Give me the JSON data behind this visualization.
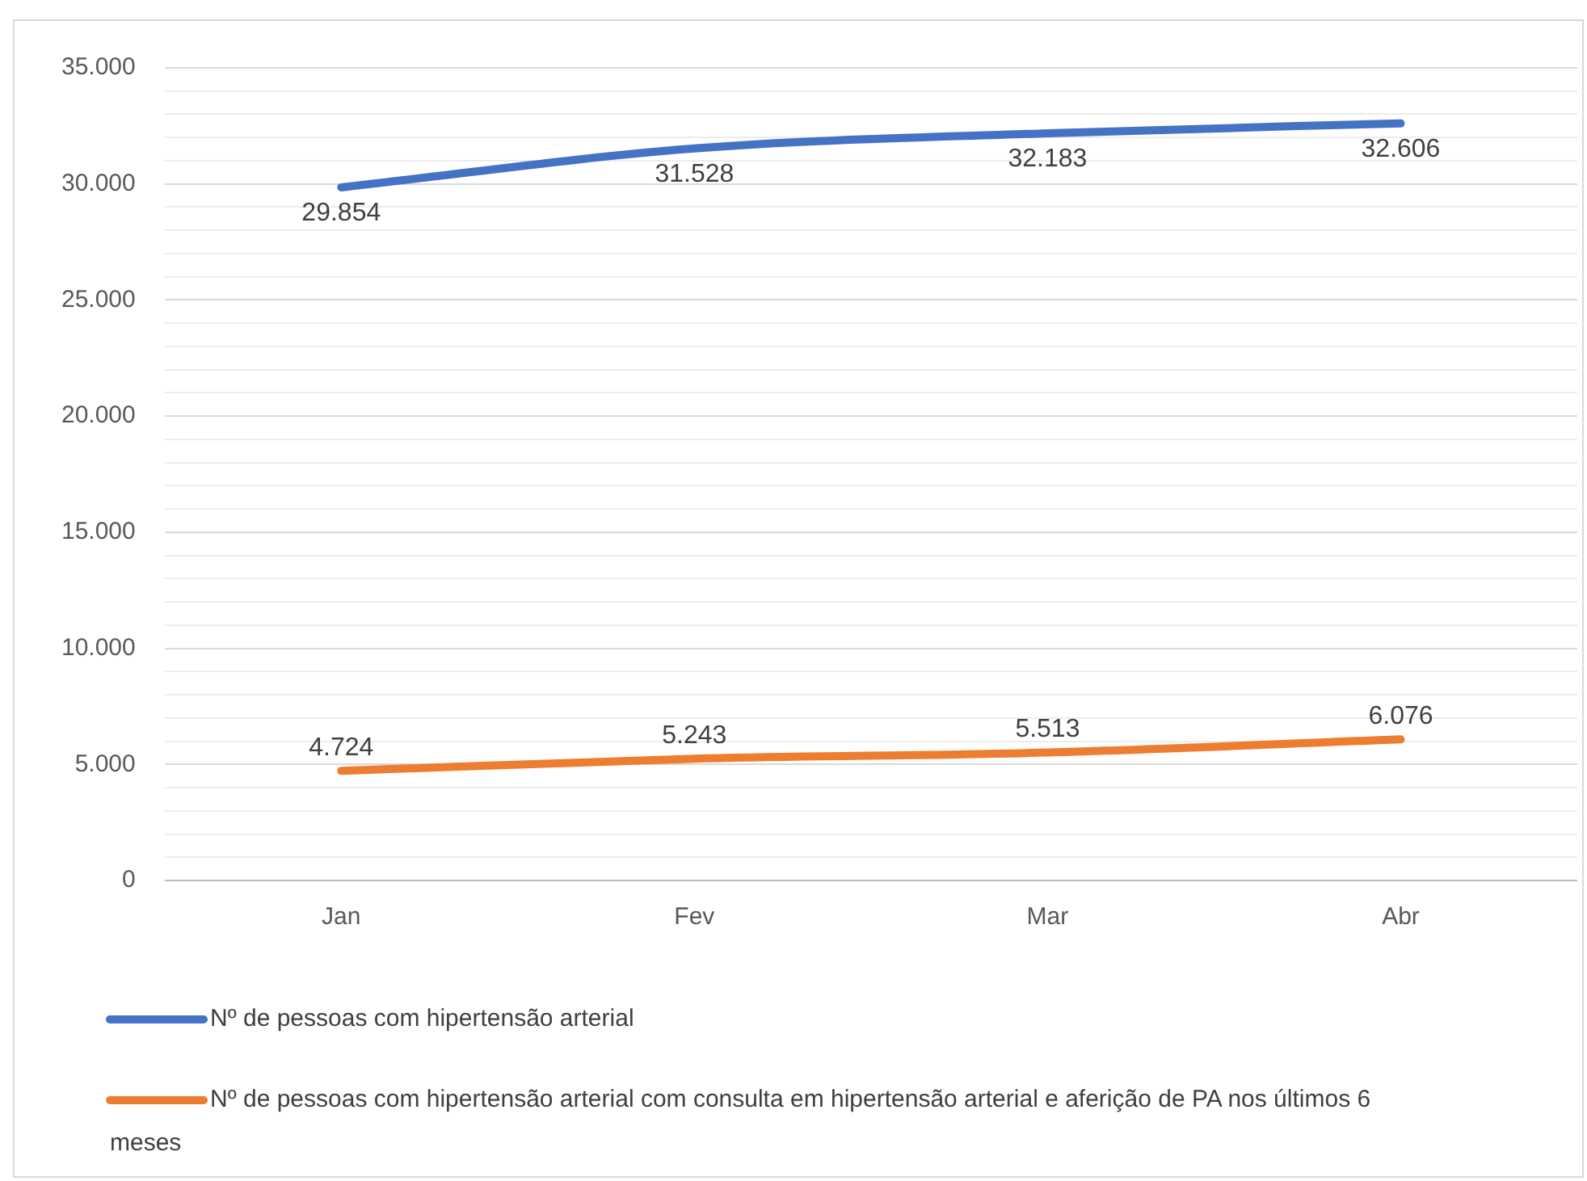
{
  "chart_data": {
    "type": "line",
    "categories": [
      "Jan",
      "Fev",
      "Mar",
      "Abr"
    ],
    "series": [
      {
        "name": "Nº de pessoas com hipertensão arterial",
        "color": "#4472c4",
        "values": [
          29854,
          31528,
          32183,
          32606
        ],
        "value_labels": [
          "29.854",
          "31.528",
          "32.183",
          "32.606"
        ]
      },
      {
        "name": "Nº de pessoas com hipertensão arterial com consulta em hipertensão arterial e aferição de PA nos últimos 6 meses",
        "color": "#ed7d31",
        "values": [
          4724,
          5243,
          5513,
          6076
        ],
        "value_labels": [
          "4.724",
          "5.243",
          "5.513",
          "6.076"
        ]
      }
    ],
    "ylim": [
      0,
      35000
    ],
    "yticks": [
      {
        "value": 0,
        "label": "0"
      },
      {
        "value": 1000,
        "label": null
      },
      {
        "value": 2000,
        "label": null
      },
      {
        "value": 3000,
        "label": null
      },
      {
        "value": 4000,
        "label": null
      },
      {
        "value": 5000,
        "label": "5.000"
      },
      {
        "value": 6000,
        "label": null
      },
      {
        "value": 7000,
        "label": null
      },
      {
        "value": 8000,
        "label": null
      },
      {
        "value": 9000,
        "label": null
      },
      {
        "value": 10000,
        "label": "10.000"
      },
      {
        "value": 11000,
        "label": null
      },
      {
        "value": 12000,
        "label": null
      },
      {
        "value": 13000,
        "label": null
      },
      {
        "value": 14000,
        "label": null
      },
      {
        "value": 15000,
        "label": "15.000"
      },
      {
        "value": 16000,
        "label": null
      },
      {
        "value": 17000,
        "label": null
      },
      {
        "value": 18000,
        "label": null
      },
      {
        "value": 19000,
        "label": null
      },
      {
        "value": 20000,
        "label": "20.000"
      },
      {
        "value": 21000,
        "label": null
      },
      {
        "value": 22000,
        "label": null
      },
      {
        "value": 23000,
        "label": null
      },
      {
        "value": 24000,
        "label": null
      },
      {
        "value": 25000,
        "label": "25.000"
      },
      {
        "value": 26000,
        "label": null
      },
      {
        "value": 27000,
        "label": null
      },
      {
        "value": 28000,
        "label": null
      },
      {
        "value": 29000,
        "label": null
      },
      {
        "value": 30000,
        "label": "30.000"
      },
      {
        "value": 31000,
        "label": null
      },
      {
        "value": 32000,
        "label": null
      },
      {
        "value": 33000,
        "label": null
      },
      {
        "value": 34000,
        "label": null
      },
      {
        "value": 35000,
        "label": "35.000"
      }
    ],
    "grid": "y",
    "legend": "bottom",
    "marker": "none",
    "line_style": "solid"
  }
}
